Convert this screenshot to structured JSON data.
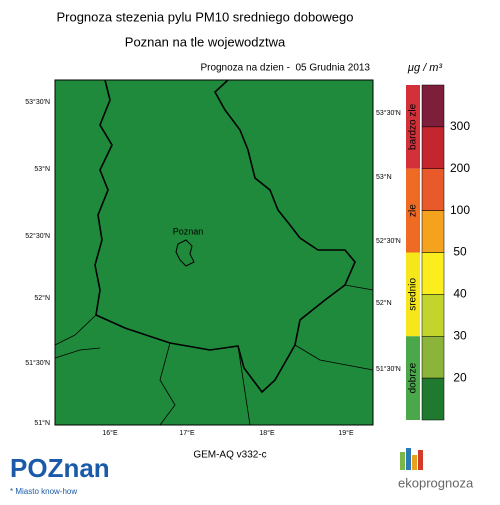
{
  "title": "Prognoza stezenia pylu PM10 sredniego dobowego",
  "subtitle": "Poznan na tle wojewodztwa",
  "forecast_date": "Prognoza na dzien -  05 Grudnia 2013",
  "map": {
    "city_label": "Poznan",
    "lat_labels_left": [
      "53°30'N",
      "53°N",
      "52°30'N",
      "52°N",
      "51°30'N",
      "51°N"
    ],
    "lat_labels_right": [
      "53°30'N",
      "53°N",
      "52°30'N",
      "52°N",
      "51°30'N"
    ],
    "lon_labels": [
      "16°E",
      "17°E",
      "18°E",
      "19°E"
    ]
  },
  "legend": {
    "unit": "μg / m³",
    "thresholds": [
      300,
      200,
      100,
      50,
      40,
      30,
      20
    ],
    "band_colors": [
      "#7d1e3b",
      "#c5262e",
      "#e85a2a",
      "#f5a31f",
      "#fcee1e",
      "#c3d52c",
      "#8cb43a",
      "#1f7a30"
    ],
    "categories": [
      {
        "name": "bardzo zle",
        "color": "#d2313a"
      },
      {
        "name": "zle",
        "color": "#ef6b24"
      },
      {
        "name": "srednio",
        "color": "#f6e61c"
      },
      {
        "name": "dobrze",
        "color": "#4aa84a"
      }
    ]
  },
  "footer": {
    "model": "GEM-AQ v332-c",
    "logo_left": "POZnan",
    "logo_tagline": "* Miasto know-how",
    "logo_right": "ekoprognoza"
  }
}
